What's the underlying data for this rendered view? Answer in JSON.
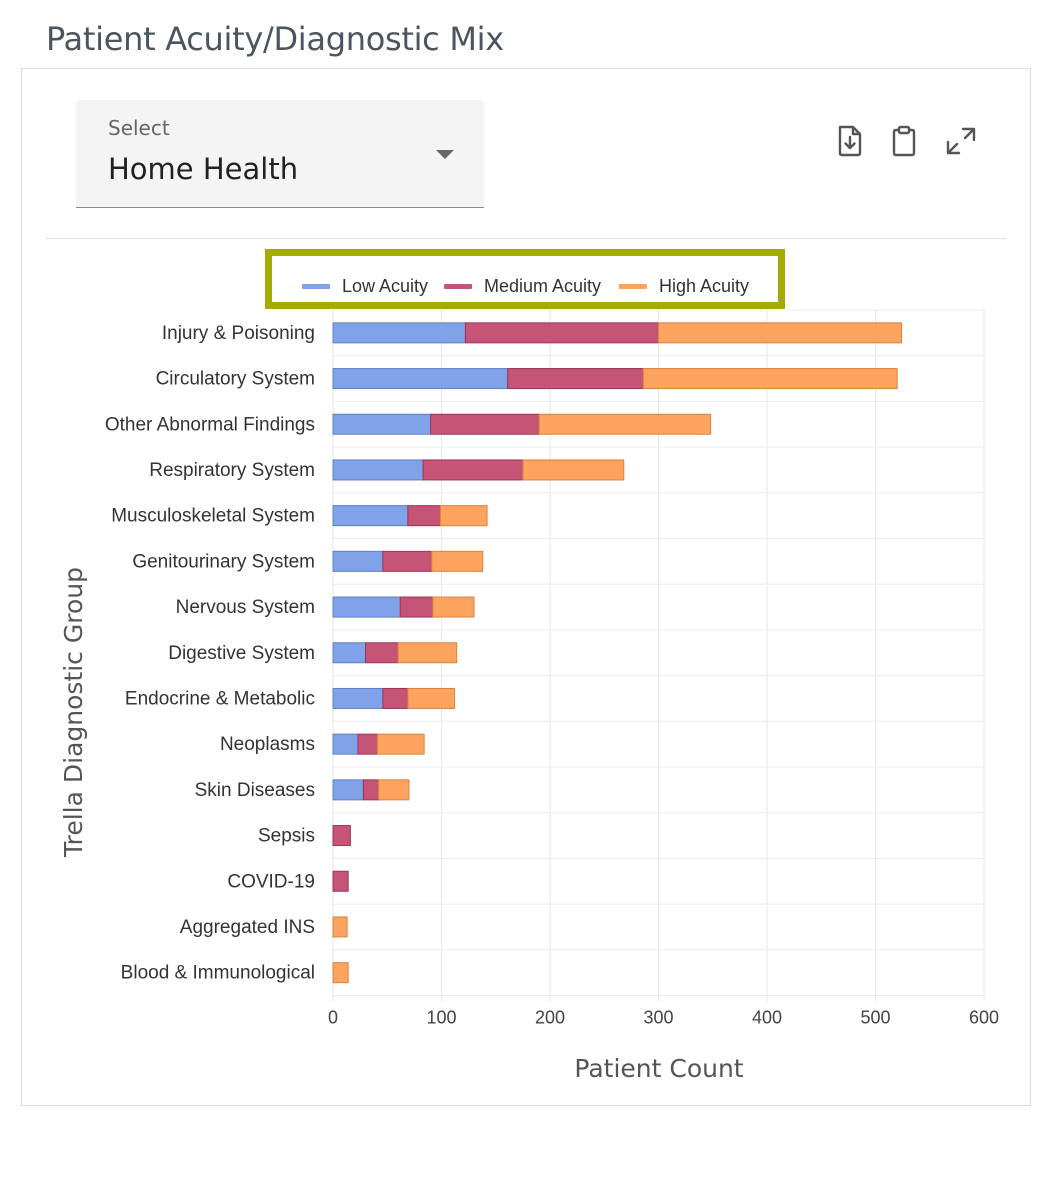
{
  "page": {
    "title": "Patient Acuity/Diagnostic Mix"
  },
  "select": {
    "label": "Select",
    "value": "Home Health"
  },
  "toolbar": {
    "download_icon": "download-file-icon",
    "clipboard_icon": "clipboard-icon",
    "expand_icon": "expand-icon"
  },
  "colors": {
    "low": "#7fa2e8",
    "medium": "#c55476",
    "high": "#fba35f",
    "highlight": "#a4ac00"
  },
  "legend": [
    {
      "name": "Low Acuity"
    },
    {
      "name": "Medium Acuity"
    },
    {
      "name": "High Acuity"
    }
  ],
  "chart_data": {
    "type": "bar",
    "orientation": "horizontal",
    "stacked": true,
    "ylabel": "Trella Diagnostic Group",
    "xlabel": "Patient Count",
    "xlim": [
      0,
      600
    ],
    "xticks": [
      0,
      100,
      200,
      300,
      400,
      500,
      600
    ],
    "grid": true,
    "legend_position": "top-center",
    "categories": [
      "Injury & Poisoning",
      "Circulatory System",
      "Other Abnormal Findings",
      "Respiratory System",
      "Musculoskeletal System",
      "Genitourinary System",
      "Nervous System",
      "Digestive System",
      "Endocrine & Metabolic",
      "Neoplasms",
      "Skin Diseases",
      "Sepsis",
      "COVID-19",
      "Aggregated INS",
      "Blood & Immunological"
    ],
    "series": [
      {
        "name": "Low Acuity",
        "values": [
          122,
          161,
          90,
          83,
          69,
          46,
          62,
          30,
          46,
          23,
          28,
          0,
          0,
          0,
          0
        ]
      },
      {
        "name": "Medium Acuity",
        "values": [
          178,
          125,
          100,
          92,
          30,
          45,
          30,
          30,
          23,
          18,
          14,
          16,
          14,
          0,
          0
        ]
      },
      {
        "name": "High Acuity",
        "values": [
          224,
          234,
          158,
          93,
          43,
          47,
          38,
          54,
          43,
          43,
          28,
          0,
          0,
          13,
          14
        ]
      }
    ]
  }
}
